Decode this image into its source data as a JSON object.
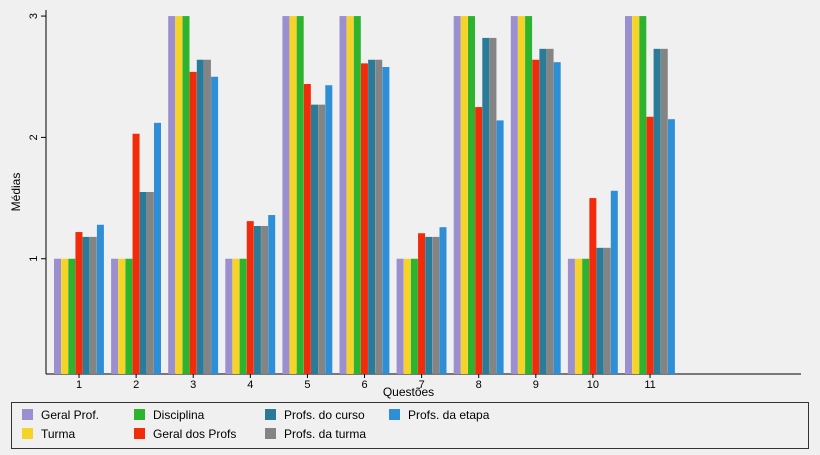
{
  "chart_data": {
    "type": "bar",
    "xlabel": "Questões",
    "ylabel": "Médias",
    "yticks": [
      "1",
      "2",
      "3"
    ],
    "ylim": [
      0.05,
      3.05
    ],
    "categories": [
      "1",
      "2",
      "3",
      "4",
      "5",
      "6",
      "7",
      "8",
      "9",
      "10",
      "11"
    ],
    "series": [
      {
        "name": "Geral Prof.",
        "color": "#9b8fd0",
        "values": [
          1,
          1,
          3,
          1,
          3,
          3,
          1,
          3,
          3,
          1,
          3
        ]
      },
      {
        "name": "Turma",
        "color": "#f5d327",
        "values": [
          1,
          1,
          3,
          1,
          3,
          3,
          1,
          3,
          3,
          1,
          3
        ]
      },
      {
        "name": "Disciplina",
        "color": "#2eb32e",
        "values": [
          1,
          1,
          3,
          1,
          3,
          3,
          1,
          3,
          3,
          1,
          3
        ]
      },
      {
        "name": "Geral dos Profs",
        "color": "#f22b0a",
        "values": [
          1.22,
          2.03,
          2.54,
          1.31,
          2.44,
          2.61,
          1.21,
          2.25,
          2.64,
          1.5,
          2.17
        ]
      },
      {
        "name": "Profs. do curso",
        "color": "#2a7b97",
        "values": [
          1.18,
          1.55,
          2.64,
          1.27,
          2.27,
          2.64,
          1.18,
          2.82,
          2.73,
          1.09,
          2.73
        ]
      },
      {
        "name": "Profs. da turma",
        "color": "#848484",
        "values": [
          1.18,
          1.55,
          2.64,
          1.27,
          2.27,
          2.64,
          1.18,
          2.82,
          2.73,
          1.09,
          2.73
        ]
      },
      {
        "name": "Profs. da etapa",
        "color": "#2e8fd6",
        "values": [
          1.28,
          2.12,
          2.5,
          1.36,
          2.43,
          2.58,
          1.26,
          2.14,
          2.62,
          1.56,
          2.15
        ]
      }
    ],
    "legend_position": "bottom",
    "grid": false
  }
}
